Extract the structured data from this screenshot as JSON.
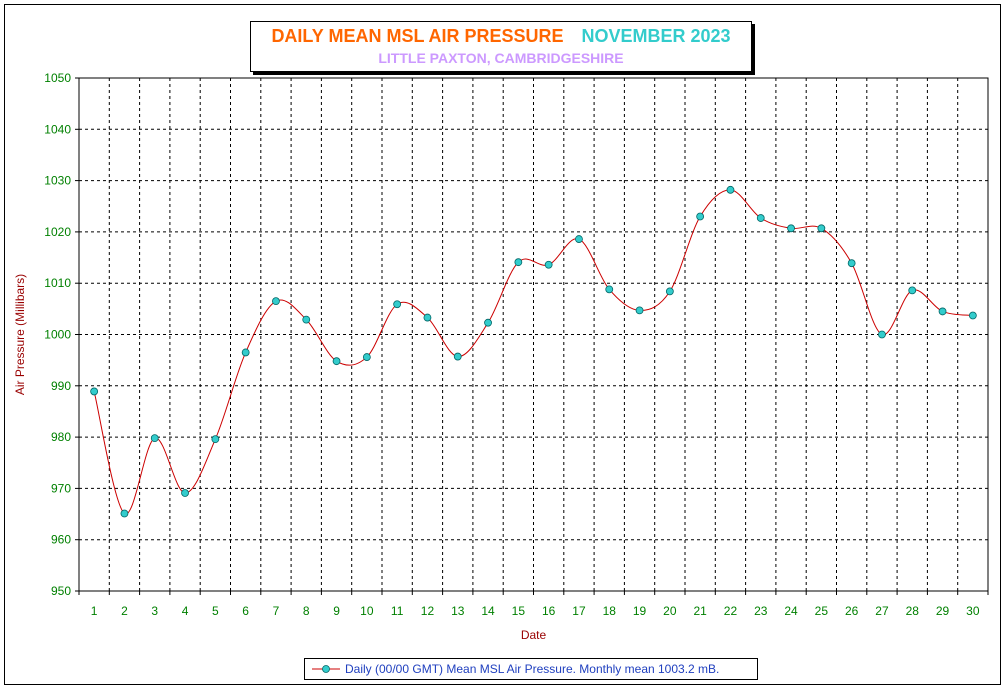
{
  "title": {
    "main": "DAILY MEAN MSL AIR PRESSURE",
    "month": "NOVEMBER 2023",
    "subtitle": "LITTLE PAXTON, CAMBRIDGESHIRE"
  },
  "legend": {
    "label": "Daily (00/00 GMT) Mean MSL Air Pressure. Monthly mean 1003.2 mB."
  },
  "colors": {
    "title_main": "#ff6600",
    "title_month": "#33cccc",
    "subtitle": "#cc99ff",
    "axis_text": "#008000",
    "axis_label": "#990000",
    "line": "#cc0000",
    "marker_fill": "#33cccc",
    "marker_stroke": "#006666",
    "grid": "#000000"
  },
  "chart_data": {
    "type": "line",
    "xlabel": "Date",
    "ylabel": "Air Pressure (Millibars)",
    "ylim": [
      950,
      1050
    ],
    "yticks": [
      950,
      960,
      970,
      980,
      990,
      1000,
      1010,
      1020,
      1030,
      1040,
      1050
    ],
    "grid": true,
    "grid_style": "dashed",
    "legend_position": "bottom",
    "x": [
      1,
      2,
      3,
      4,
      5,
      6,
      7,
      8,
      9,
      10,
      11,
      12,
      13,
      14,
      15,
      16,
      17,
      18,
      19,
      20,
      21,
      22,
      23,
      24,
      25,
      26,
      27,
      28,
      29,
      30
    ],
    "series": [
      {
        "name": "Daily (00/00 GMT) Mean MSL Air Pressure. Monthly mean 1003.2 mB.",
        "values": [
          988.9,
          965.1,
          979.8,
          969.1,
          979.6,
          996.5,
          1006.5,
          1002.9,
          994.8,
          995.6,
          1005.9,
          1003.3,
          995.7,
          1002.3,
          1014.1,
          1013.6,
          1018.6,
          1008.8,
          1004.7,
          1008.4,
          1023.0,
          1028.2,
          1022.7,
          1020.7,
          1020.7,
          1013.9,
          1000.0,
          1008.6,
          1004.5,
          1003.7
        ]
      }
    ]
  }
}
